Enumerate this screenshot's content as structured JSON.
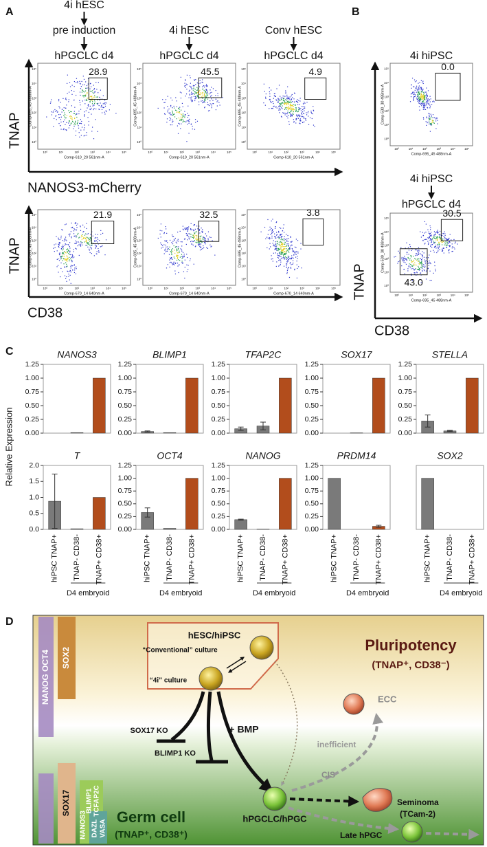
{
  "panel_a": {
    "label": "A",
    "headers": [
      [
        "4i hESC",
        "pre induction",
        "hPGCLC d4"
      ],
      [
        "4i hESC",
        "hPGCLC d4"
      ],
      [
        "Conv hESC",
        "hPGCLC d4"
      ]
    ],
    "rows": [
      {
        "y_axis": "TNAP",
        "x_axis": "NANOS3-mCherry",
        "plots": [
          {
            "x_label": "Comp-610_20 561nm-A",
            "y_label": "Comp-695_45 488nm-A",
            "gates": [
              "28.9"
            ]
          },
          {
            "x_label": "Comp-610_20 561nm-A",
            "y_label": "Comp-695_45 488nm-A",
            "gates": [
              "45.5"
            ]
          },
          {
            "x_label": "Comp-610_20 561nm-A",
            "y_label": "Comp-695_45 488nm-A",
            "gates": [
              "4.9"
            ]
          }
        ]
      },
      {
        "y_axis": "TNAP",
        "x_axis": "CD38",
        "plots": [
          {
            "x_label": "Comp-670_14 640nm-A",
            "y_label": "Comp-695_45 488nm-A",
            "gates": [
              "21.9"
            ]
          },
          {
            "x_label": "Comp-670_14 640nm-A",
            "y_label": "Comp-695_45 488nm-A",
            "gates": [
              "32.5"
            ]
          },
          {
            "x_label": "Comp-670_14 640nm-A",
            "y_label": "Comp-695_45 488nm-A",
            "gates": [
              "3.8"
            ]
          }
        ]
      }
    ]
  },
  "panel_b": {
    "label": "B",
    "headers": [
      [
        "4i hiPSC"
      ],
      [
        "4i hiPSC",
        "hPGCLC d4"
      ]
    ],
    "y_axis": "TNAP",
    "x_axis": "CD38",
    "plots": [
      {
        "x_label": "Comp-695_45 488nm-A",
        "y_label": "Comp-530_30 488nm-A",
        "gates": [
          "0.0"
        ]
      },
      {
        "x_label": "Comp-695_45 488nm-A",
        "y_label": "Comp-530_30 488nm-A",
        "gates": [
          "30.5",
          "43.0"
        ]
      }
    ]
  },
  "flow_ticks": [
    "10⁰",
    "10¹",
    "10²",
    "10³",
    "10⁴",
    "10⁵"
  ],
  "panel_c": {
    "label": "C",
    "y_label": "Relative Expression"
  },
  "chart_data": [
    {
      "type": "bar",
      "title": "NANOS3",
      "categories": [
        null,
        null,
        null
      ],
      "values": [
        0,
        0.01,
        1
      ],
      "errors": [
        null,
        null,
        null
      ],
      "colors": [
        "#7a7a7a",
        "#7a7a7a",
        "#b24d1c"
      ],
      "ylim": [
        0,
        1.25
      ],
      "yticks": [
        {
          "value": 0,
          "label": "0.00"
        },
        {
          "value": 0.25,
          "label": "0.25"
        },
        {
          "value": 0.5,
          "label": "0.50"
        },
        {
          "value": 0.75,
          "label": "0.75"
        },
        {
          "value": 1,
          "label": "1.00"
        },
        {
          "value": 1.25,
          "label": "1.25"
        }
      ]
    },
    {
      "type": "bar",
      "title": "BLIMP1",
      "categories": [
        null,
        null,
        null
      ],
      "values": [
        0.03,
        0.01,
        1
      ],
      "errors": [
        0.01,
        null,
        null
      ],
      "colors": [
        "#7a7a7a",
        "#7a7a7a",
        "#b24d1c"
      ],
      "ylim": [
        0,
        1.25
      ],
      "yticks": [
        {
          "value": 0,
          "label": "0.00"
        },
        {
          "value": 0.25,
          "label": "0.25"
        },
        {
          "value": 0.5,
          "label": "0.50"
        },
        {
          "value": 0.75,
          "label": "0.75"
        },
        {
          "value": 1,
          "label": "1.00"
        },
        {
          "value": 1.25,
          "label": "1.25"
        }
      ]
    },
    {
      "type": "bar",
      "title": "TFAP2C",
      "categories": [
        null,
        null,
        null
      ],
      "values": [
        0.08,
        0.13,
        1
      ],
      "errors": [
        0.03,
        0.07,
        null
      ],
      "colors": [
        "#7a7a7a",
        "#7a7a7a",
        "#b24d1c"
      ],
      "ylim": [
        0,
        1.25
      ],
      "yticks": [
        {
          "value": 0,
          "label": "0.00"
        },
        {
          "value": 0.25,
          "label": "0.25"
        },
        {
          "value": 0.5,
          "label": "0.50"
        },
        {
          "value": 0.75,
          "label": "0.75"
        },
        {
          "value": 1,
          "label": "1.00"
        },
        {
          "value": 1.25,
          "label": "1.25"
        }
      ]
    },
    {
      "type": "bar",
      "title": "SOX17",
      "categories": [
        null,
        null,
        null
      ],
      "values": [
        0,
        0.005,
        1
      ],
      "errors": [
        null,
        null,
        null
      ],
      "colors": [
        "#7a7a7a",
        "#7a7a7a",
        "#b24d1c"
      ],
      "ylim": [
        0,
        1.25
      ],
      "yticks": [
        {
          "value": 0,
          "label": "0.00"
        },
        {
          "value": 0.25,
          "label": "0.25"
        },
        {
          "value": 0.5,
          "label": "0.50"
        },
        {
          "value": 0.75,
          "label": "0.75"
        },
        {
          "value": 1,
          "label": "1.00"
        },
        {
          "value": 1.25,
          "label": "1.25"
        }
      ]
    },
    {
      "type": "bar",
      "title": "STELLA",
      "categories": [
        null,
        null,
        null
      ],
      "values": [
        0.22,
        0.04,
        1
      ],
      "errors": [
        0.11,
        0.01,
        null
      ],
      "colors": [
        "#7a7a7a",
        "#7a7a7a",
        "#b24d1c"
      ],
      "ylim": [
        0,
        1.25
      ],
      "yticks": [
        {
          "value": 0,
          "label": "0.00"
        },
        {
          "value": 0.25,
          "label": "0.25"
        },
        {
          "value": 0.5,
          "label": "0.50"
        },
        {
          "value": 0.75,
          "label": "0.75"
        },
        {
          "value": 1,
          "label": "1.00"
        },
        {
          "value": 1.25,
          "label": "1.25"
        }
      ]
    },
    {
      "type": "bar",
      "title": "T",
      "categories": [
        "hiPSC TNAP+",
        "TNAP- CD38-",
        "TNAP+ CD38+"
      ],
      "group_label": "D4 embryoid",
      "values": [
        0.88,
        0.02,
        1
      ],
      "errors": [
        0.85,
        null,
        null
      ],
      "colors": [
        "#7a7a7a",
        "#7a7a7a",
        "#b24d1c"
      ],
      "ylim": [
        0,
        2
      ],
      "yticks": [
        {
          "value": 0,
          "label": "0.0"
        },
        {
          "value": 0.5,
          "label": "0.5"
        },
        {
          "value": 1,
          "label": "1.0"
        },
        {
          "value": 1.5,
          "label": "1.5"
        },
        {
          "value": 2,
          "label": "2.0"
        }
      ]
    },
    {
      "type": "bar",
      "title": "OCT4",
      "categories": [
        "hiPSC TNAP+",
        "TNAP- CD38-",
        "TNAP+ CD38+"
      ],
      "group_label": "D4 embryoid",
      "values": [
        0.33,
        0.02,
        1
      ],
      "errors": [
        0.09,
        null,
        null
      ],
      "colors": [
        "#7a7a7a",
        "#7a7a7a",
        "#b24d1c"
      ],
      "ylim": [
        0,
        1.25
      ],
      "yticks": [
        {
          "value": 0,
          "label": "0.00"
        },
        {
          "value": 0.25,
          "label": "0.25"
        },
        {
          "value": 0.5,
          "label": "0.50"
        },
        {
          "value": 0.75,
          "label": "0.75"
        },
        {
          "value": 1,
          "label": "1.00"
        },
        {
          "value": 1.25,
          "label": "1.25"
        }
      ]
    },
    {
      "type": "bar",
      "title": "NANOG",
      "categories": [
        "hiPSC TNAP+",
        "TNAP- CD38-",
        "TNAP+ CD38+"
      ],
      "group_label": "D4 embryoid",
      "values": [
        0.19,
        0.005,
        1
      ],
      "errors": [
        0.01,
        null,
        null
      ],
      "colors": [
        "#7a7a7a",
        "#7a7a7a",
        "#b24d1c"
      ],
      "ylim": [
        0,
        1.25
      ],
      "yticks": [
        {
          "value": 0,
          "label": "0.00"
        },
        {
          "value": 0.25,
          "label": "0.25"
        },
        {
          "value": 0.5,
          "label": "0.50"
        },
        {
          "value": 0.75,
          "label": "0.75"
        },
        {
          "value": 1,
          "label": "1.00"
        },
        {
          "value": 1.25,
          "label": "1.25"
        }
      ]
    },
    {
      "type": "bar",
      "title": "PRDM14",
      "categories": [
        "hiPSC TNAP+",
        "TNAP- CD38-",
        "TNAP+ CD38+"
      ],
      "group_label": "D4 embryoid",
      "values": [
        1,
        0,
        0.06
      ],
      "errors": [
        null,
        null,
        0.02
      ],
      "colors": [
        "#7a7a7a",
        "#7a7a7a",
        "#b24d1c"
      ],
      "ylim": [
        0,
        1.25
      ],
      "yticks": [
        {
          "value": 0,
          "label": "0.00"
        },
        {
          "value": 0.25,
          "label": "0.25"
        },
        {
          "value": 0.5,
          "label": "0.50"
        },
        {
          "value": 0.75,
          "label": "0.75"
        },
        {
          "value": 1,
          "label": "1.00"
        },
        {
          "value": 1.25,
          "label": "1.25"
        }
      ]
    },
    {
      "type": "bar",
      "title": "SOX2",
      "categories": [
        "hiPSC TNAP+",
        "TNAP- CD38-",
        "TNAP+ CD38+"
      ],
      "group_label": "D4 embryoid",
      "values": [
        1,
        0,
        0
      ],
      "errors": [
        null,
        null,
        null
      ],
      "colors": [
        "#7a7a7a",
        "#7a7a7a",
        "#b24d1c"
      ],
      "ylim": [
        0,
        1.25
      ]
    }
  ],
  "panel_d": {
    "label": "D",
    "gene_bars": [
      "NANOG OCT4",
      "SOX2",
      "SOX17",
      "NANOS3",
      "BLIMP1",
      "TCFAP2C",
      "DAZL",
      "VASA"
    ],
    "box_title": "hESC/hiPSC",
    "conventional": "“Conventional” culture",
    "fouri": "“4i” culture",
    "sox17_ko": "SOX17 KO",
    "blimp1_ko": "BLIMP1 KO",
    "bmp": "+ BMP",
    "inefficient": "inefficient",
    "cis": "CIS",
    "ecc": "ECC",
    "seminoma": "Seminoma",
    "tcam": "(TCam-2)",
    "hpgclc": "hPGCLC/hPGC",
    "late": "Late hPGC",
    "pluripotency": "Pluripotency",
    "pluri_markers": "(TNAP⁺, CD38⁻)",
    "germ": "Germ cell",
    "germ_markers": "(TNAP⁺, CD38⁺)"
  }
}
